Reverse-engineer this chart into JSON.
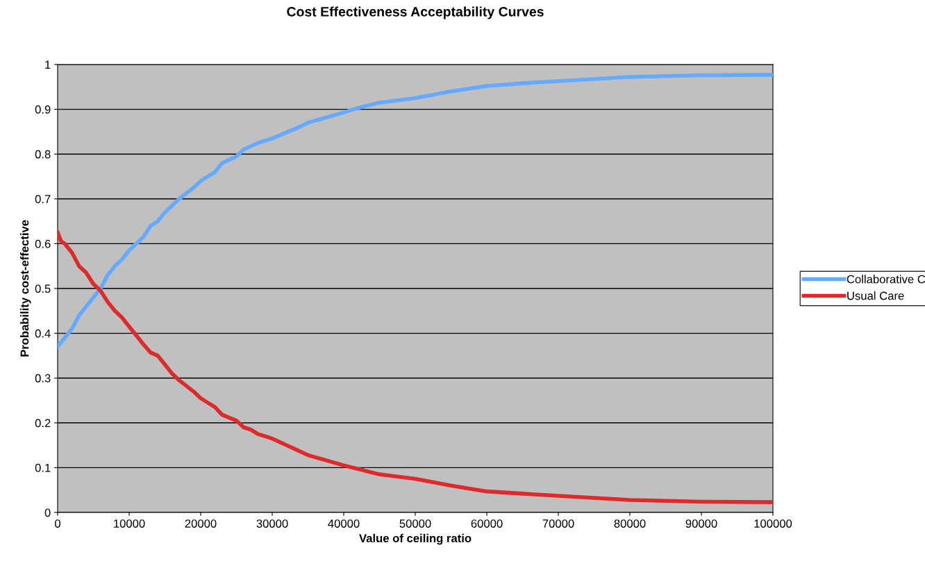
{
  "chart_data": {
    "type": "line",
    "title": "Cost Effectiveness Acceptability Curves",
    "xlabel": "Value of ceiling ratio",
    "ylabel": "Probability cost-effective",
    "xlim": [
      0,
      100000
    ],
    "xticks": [
      0,
      10000,
      20000,
      30000,
      40000,
      50000,
      60000,
      70000,
      80000,
      90000,
      100000
    ],
    "ylim": [
      0,
      1
    ],
    "yticks": [
      0,
      0.1,
      0.2,
      0.3,
      0.4,
      0.5,
      0.6,
      0.7,
      0.8,
      0.9,
      1
    ],
    "grid": "y",
    "legend": "right",
    "marker": "none",
    "line_style": "solid",
    "series": [
      {
        "name": "Collaborative C",
        "color": "#66aaff",
        "x": [
          0,
          1000,
          2000,
          3000,
          5000,
          6000,
          7000,
          8000,
          9000,
          10000,
          12000,
          13000,
          14000,
          15000,
          17000,
          19000,
          20000,
          22000,
          23000,
          25000,
          26000,
          28000,
          30000,
          33000,
          35000,
          40000,
          42000,
          45000,
          50000,
          55000,
          60000,
          65000,
          70000,
          80000,
          90000,
          100000
        ],
        "values": [
          0.37,
          0.39,
          0.41,
          0.44,
          0.48,
          0.5,
          0.53,
          0.55,
          0.565,
          0.585,
          0.615,
          0.64,
          0.65,
          0.67,
          0.7,
          0.725,
          0.74,
          0.76,
          0.78,
          0.795,
          0.81,
          0.825,
          0.835,
          0.855,
          0.87,
          0.893,
          0.903,
          0.915,
          0.925,
          0.94,
          0.952,
          0.958,
          0.963,
          0.972,
          0.976,
          0.977
        ]
      },
      {
        "name": "Usual Care",
        "color": "#dd2a2a",
        "x": [
          0,
          500,
          1000,
          2000,
          3000,
          4000,
          5000,
          6000,
          7000,
          8000,
          9000,
          10000,
          11000,
          12000,
          13000,
          14000,
          15000,
          16000,
          17000,
          19000,
          20000,
          21000,
          22000,
          23000,
          25000,
          26000,
          27000,
          28000,
          30000,
          35000,
          40000,
          45000,
          50000,
          55000,
          60000,
          65000,
          70000,
          80000,
          90000,
          100000
        ],
        "values": [
          0.625,
          0.605,
          0.6,
          0.58,
          0.55,
          0.535,
          0.51,
          0.495,
          0.47,
          0.45,
          0.435,
          0.415,
          0.395,
          0.375,
          0.357,
          0.35,
          0.33,
          0.31,
          0.295,
          0.27,
          0.255,
          0.245,
          0.235,
          0.218,
          0.205,
          0.19,
          0.185,
          0.175,
          0.165,
          0.128,
          0.105,
          0.085,
          0.075,
          0.06,
          0.047,
          0.042,
          0.037,
          0.028,
          0.024,
          0.023
        ]
      }
    ]
  }
}
